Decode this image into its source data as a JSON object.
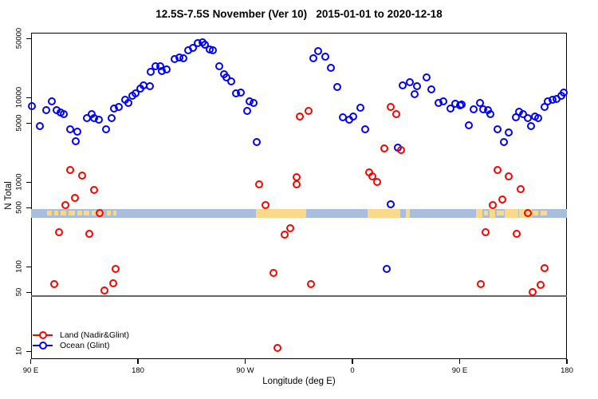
{
  "title": "12.5S-7.5S November (Ver 10)   2015-01-01 to 2020-12-18",
  "legend": {
    "items": [
      {
        "label": "Land (Nadir&Glint)",
        "color": "#ff0000"
      },
      {
        "label": "Ocean (Glint)",
        "color": "#0000ff"
      }
    ]
  },
  "chart_data": {
    "type": "scatter",
    "title": "12.5S-7.5S November (Ver 10)   2015-01-01 to 2020-12-18",
    "xlabel": "Longitude (deg E)",
    "ylabel": "N Total",
    "x_axis": {
      "note": "axis wraps eastward from 90E; positions stored as axis degrees 90-540",
      "tick_axis_deg": [
        90,
        180,
        270,
        360,
        450,
        540
      ],
      "tick_labels": [
        "90 E",
        "180",
        "90 W",
        "0",
        "90 E",
        "180"
      ],
      "range_axis_deg": [
        90,
        540
      ]
    },
    "y_axis": {
      "scale": "log",
      "tick_values": [
        50000,
        10000,
        5000,
        1000,
        500,
        100,
        50,
        10
      ],
      "range": [
        10,
        58000
      ]
    },
    "grid": false,
    "legend_position": "bottom-left",
    "reference_line": {
      "y_value": 45,
      "color": "#666666"
    },
    "map_strip": {
      "y_value_range": [
        375,
        485
      ],
      "ocean_color": "#a9bedd",
      "land_color": "#fbd98b",
      "solid_patches_deg": [
        [
          279,
          321
        ],
        [
          373,
          400
        ],
        [
          404.5,
          408.5
        ],
        [
          464,
          469
        ],
        [
          475,
          480
        ],
        [
          488,
          499
        ],
        [
          500,
          510.5
        ]
      ],
      "speckle_patches_deg": [
        [
          104,
          108
        ],
        [
          110,
          113
        ],
        [
          115,
          120
        ],
        [
          122,
          127
        ],
        [
          129,
          133
        ],
        [
          134.5,
          139
        ],
        [
          141,
          146
        ],
        [
          147,
          151
        ],
        [
          154,
          157
        ],
        [
          159,
          162
        ],
        [
          470.5,
          474
        ],
        [
          481,
          487
        ],
        [
          511.5,
          516
        ],
        [
          518,
          523
        ]
      ]
    },
    "series": [
      {
        "name": "Ocean (Glint)",
        "color": "#0000ff",
        "points": [
          [
            91,
            7900
          ],
          [
            98,
            4600
          ],
          [
            103,
            7100
          ],
          [
            108,
            9000
          ],
          [
            112,
            7100
          ],
          [
            115,
            6700
          ],
          [
            118,
            6400
          ],
          [
            123,
            4200
          ],
          [
            128,
            3050
          ],
          [
            129,
            3950
          ],
          [
            137,
            5700
          ],
          [
            141,
            6400
          ],
          [
            143,
            5700
          ],
          [
            147,
            5500
          ],
          [
            153,
            4200
          ],
          [
            158,
            5700
          ],
          [
            160,
            7400
          ],
          [
            164,
            7800
          ],
          [
            169,
            9400
          ],
          [
            172,
            8650
          ],
          [
            175,
            10600
          ],
          [
            178,
            11200
          ],
          [
            182,
            12800
          ],
          [
            185,
            13900
          ],
          [
            190,
            13650
          ],
          [
            191,
            20200
          ],
          [
            195,
            23500
          ],
          [
            199,
            23700
          ],
          [
            200,
            20600
          ],
          [
            204,
            21500
          ],
          [
            211,
            28600
          ],
          [
            215,
            29800
          ],
          [
            218,
            29200
          ],
          [
            222,
            36200
          ],
          [
            226,
            38600
          ],
          [
            230,
            44000
          ],
          [
            234,
            45000
          ],
          [
            236,
            42200
          ],
          [
            240,
            37100
          ],
          [
            243,
            36200
          ],
          [
            248,
            23500
          ],
          [
            252,
            18900
          ],
          [
            254,
            17300
          ],
          [
            258,
            15500
          ],
          [
            262,
            11200
          ],
          [
            266,
            11500
          ],
          [
            272,
            7000
          ],
          [
            274,
            9000
          ],
          [
            277,
            8700
          ],
          [
            280,
            2980
          ],
          [
            327,
            29200
          ],
          [
            331,
            35500
          ],
          [
            337,
            30500
          ],
          [
            342,
            22500
          ],
          [
            347,
            13300
          ],
          [
            352,
            5850
          ],
          [
            357,
            5500
          ],
          [
            361,
            5950
          ],
          [
            367,
            7600
          ],
          [
            371,
            4200
          ],
          [
            389,
            95
          ],
          [
            392,
            550
          ],
          [
            398,
            2560
          ],
          [
            402,
            13900
          ],
          [
            408,
            15200
          ],
          [
            412,
            11000
          ],
          [
            414,
            13650
          ],
          [
            422,
            17300
          ],
          [
            426,
            12500
          ],
          [
            432,
            8700
          ],
          [
            436,
            9100
          ],
          [
            442,
            7400
          ],
          [
            446,
            8400
          ],
          [
            450,
            8100
          ],
          [
            452,
            8300
          ],
          [
            458,
            4700
          ],
          [
            462,
            7250
          ],
          [
            467,
            8700
          ],
          [
            470,
            7250
          ],
          [
            474,
            7100
          ],
          [
            476,
            6400
          ],
          [
            482,
            4200
          ],
          [
            487,
            2980
          ],
          [
            491,
            3870
          ],
          [
            497,
            5800
          ],
          [
            500,
            6850
          ],
          [
            503,
            6400
          ],
          [
            507,
            5700
          ],
          [
            510,
            4600
          ],
          [
            513,
            5950
          ],
          [
            516,
            5700
          ],
          [
            521,
            7800
          ],
          [
            524,
            9000
          ],
          [
            528,
            9400
          ],
          [
            531,
            9600
          ],
          [
            535,
            10600
          ],
          [
            537,
            11500
          ]
        ]
      },
      {
        "name": "Land (Nadir&Glint)",
        "color": "#ff0000",
        "points": [
          [
            110,
            62
          ],
          [
            114,
            256
          ],
          [
            119,
            535
          ],
          [
            123,
            1390
          ],
          [
            127,
            650
          ],
          [
            133,
            1200
          ],
          [
            139,
            245
          ],
          [
            143,
            810
          ],
          [
            148,
            430
          ],
          [
            152,
            52
          ],
          [
            159,
            64
          ],
          [
            161,
            94
          ],
          [
            282,
            940
          ],
          [
            287,
            535
          ],
          [
            294,
            85
          ],
          [
            297,
            11
          ],
          [
            303,
            240
          ],
          [
            308,
            286
          ],
          [
            313,
            1150
          ],
          [
            313,
            940
          ],
          [
            316,
            5950
          ],
          [
            323,
            6950
          ],
          [
            325,
            62
          ],
          [
            374,
            1310
          ],
          [
            377,
            1170
          ],
          [
            381,
            1010
          ],
          [
            387,
            2500
          ],
          [
            392,
            7800
          ],
          [
            397,
            6400
          ],
          [
            401,
            2400
          ],
          [
            468,
            63
          ],
          [
            472,
            256
          ],
          [
            478,
            535
          ],
          [
            482,
            1390
          ],
          [
            486,
            625
          ],
          [
            491,
            1170
          ],
          [
            498,
            245
          ],
          [
            501,
            830
          ],
          [
            507,
            430
          ],
          [
            511,
            50
          ],
          [
            518,
            61
          ],
          [
            521,
            96
          ]
        ]
      }
    ]
  }
}
